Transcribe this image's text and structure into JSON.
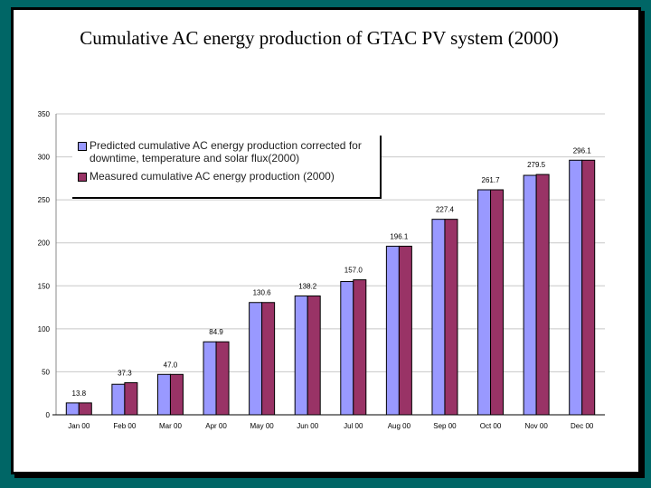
{
  "title": "Cumulative AC energy production of GTAC PV system (2000)",
  "chart_data": {
    "type": "bar",
    "title": "Cumulative AC energy production of GTAC PV system (2000)",
    "categories": [
      "Jan 00",
      "Feb 00",
      "Mar 00",
      "Apr 00",
      "May 00",
      "Jun 00",
      "Jul 00",
      "Aug 00",
      "Sep 00",
      "Oct 00",
      "Nov 00",
      "Dec 00"
    ],
    "series": [
      {
        "name": "Predicted cumulative AC energy production corrected for downtime, temperature and solar flux(2000)",
        "color": "#9999ff",
        "values": [
          13.8,
          35.5,
          47.0,
          84.9,
          130.6,
          138.2,
          155.0,
          196.1,
          227.4,
          261.7,
          278.5,
          296.1
        ]
      },
      {
        "name": "Measured cumulative AC energy production (2000)",
        "color": "#993366",
        "values": [
          13.8,
          37.3,
          47.0,
          84.9,
          130.6,
          138.2,
          157.0,
          196.1,
          227.4,
          261.7,
          279.5,
          296.1
        ]
      }
    ],
    "data_labels": [
      "13.8",
      "37.3",
      "47.0",
      "84.9",
      "130.6",
      "138.2",
      "157.0",
      "196.1",
      "227.4",
      "261.7",
      "279.5",
      "296.1"
    ],
    "ylim": [
      0,
      350
    ],
    "yticks": [
      0,
      50,
      100,
      150,
      200,
      250,
      300,
      350
    ],
    "grid": true,
    "legend": "top-left"
  }
}
